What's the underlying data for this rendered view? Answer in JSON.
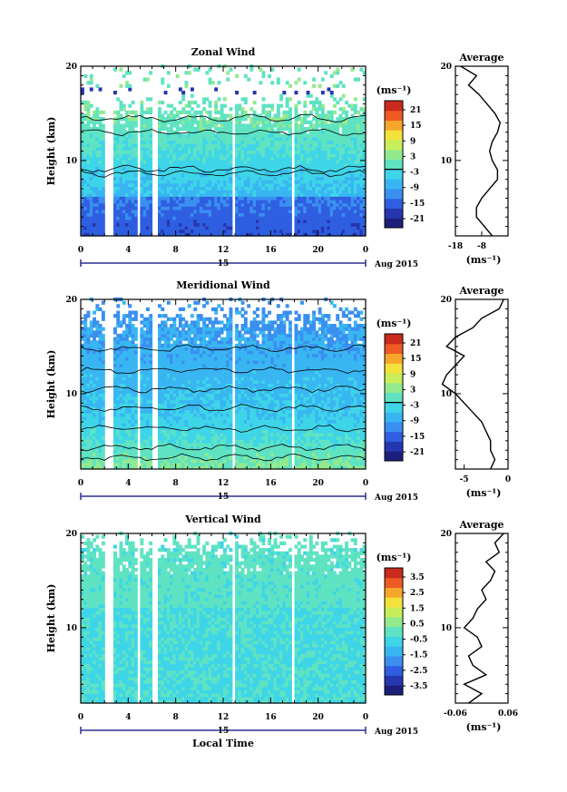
{
  "figure_label": "Aug 2015",
  "day_label": "15",
  "x_axis_label": "Local Time",
  "x_ticks": [
    "0",
    "4",
    "8",
    "12",
    "16",
    "20",
    "0"
  ],
  "colorbar_unit": "(ms⁻¹)",
  "chart_data": [
    {
      "type": "heatmap",
      "title": "Zonal Wind",
      "ylabel": "Height (km)",
      "xlabel": "Local Time",
      "x_range": [
        0,
        24
      ],
      "ylim": [
        2,
        20
      ],
      "y_ticks": [
        "20",
        "10"
      ],
      "gaps_hours": [
        [
          2.0,
          2.6
        ],
        [
          4.6,
          5.0
        ],
        [
          5.8,
          6.4
        ],
        [
          12.6,
          13.0
        ],
        [
          17.6,
          18.0
        ]
      ],
      "colorbar": {
        "label": "(ms⁻¹)",
        "ticks": [
          "21",
          "15",
          "9",
          "3",
          "-3",
          "-9",
          "-15",
          "-21"
        ],
        "contour_at": "0"
      },
      "profile": {
        "title": "Average",
        "xlim": [
          -18,
          2
        ],
        "x_ticks": [
          "-18",
          "-8"
        ],
        "xlabel": "(ms⁻¹)",
        "heights_km": [
          2,
          3,
          4,
          5,
          6,
          7,
          8,
          9,
          10,
          11,
          12,
          13,
          14,
          15,
          16,
          17,
          18,
          19,
          20
        ],
        "values": [
          -4,
          -7,
          -10,
          -10,
          -8,
          -5,
          -2,
          -2,
          -4,
          -5,
          -4,
          -2,
          -1,
          -3,
          -6,
          -9,
          -13,
          -10,
          -16
        ]
      }
    },
    {
      "type": "heatmap",
      "title": "Meridional Wind",
      "ylabel": "Height (km)",
      "xlabel": "Local Time",
      "x_range": [
        0,
        24
      ],
      "ylim": [
        2,
        20
      ],
      "y_ticks": [
        "20",
        "10"
      ],
      "gaps_hours": [
        [
          2.0,
          2.6
        ],
        [
          4.6,
          5.0
        ],
        [
          5.8,
          6.4
        ],
        [
          12.6,
          13.0
        ],
        [
          17.6,
          18.0
        ]
      ],
      "colorbar": {
        "label": "(ms⁻¹)",
        "ticks": [
          "21",
          "15",
          "9",
          "3",
          "-3",
          "-9",
          "-15",
          "-21"
        ],
        "contour_at": "0"
      },
      "profile": {
        "title": "Average",
        "xlim": [
          -6,
          0
        ],
        "x_ticks": [
          "-5",
          "0"
        ],
        "xlabel": "(ms⁻¹)",
        "heights_km": [
          2,
          3,
          4,
          5,
          6,
          7,
          8,
          9,
          10,
          11,
          12,
          13,
          14,
          15,
          16,
          17,
          18,
          19,
          20
        ],
        "values": [
          -2,
          -1.5,
          -2,
          -2,
          -2.5,
          -3,
          -4,
          -5,
          -6,
          -7.5,
          -7,
          -6,
          -5,
          -7,
          -6,
          -4,
          -3,
          -1,
          -0.5
        ]
      }
    },
    {
      "type": "heatmap",
      "title": "Vertical Wind",
      "ylabel": "Height (km)",
      "xlabel": "Local Time",
      "x_range": [
        0,
        24
      ],
      "ylim": [
        2,
        20
      ],
      "y_ticks": [
        "20",
        "10"
      ],
      "gaps_hours": [
        [
          2.0,
          2.6
        ],
        [
          4.6,
          5.0
        ],
        [
          5.8,
          6.4
        ],
        [
          12.6,
          13.0
        ],
        [
          17.6,
          18.0
        ]
      ],
      "colorbar": {
        "label": "(ms⁻¹)",
        "ticks": [
          "3.5",
          "2.5",
          "1.5",
          "0.5",
          "-0.5",
          "-1.5",
          "-2.5",
          "-3.5"
        ]
      },
      "profile": {
        "title": "Average",
        "xlim": [
          -0.06,
          0.06
        ],
        "x_ticks": [
          "-0.06",
          "0.06"
        ],
        "xlabel": "(ms⁻¹)",
        "heights_km": [
          2,
          3,
          4,
          5,
          6,
          7,
          8,
          9,
          10,
          11,
          12,
          13,
          14,
          15,
          16,
          17,
          18,
          19,
          20
        ],
        "values": [
          -0.03,
          0.0,
          -0.04,
          0.01,
          -0.02,
          -0.03,
          0.0,
          -0.01,
          -0.04,
          -0.02,
          -0.01,
          0.01,
          0.0,
          0.02,
          0.03,
          0.01,
          0.04,
          0.03,
          0.05
        ]
      }
    }
  ]
}
